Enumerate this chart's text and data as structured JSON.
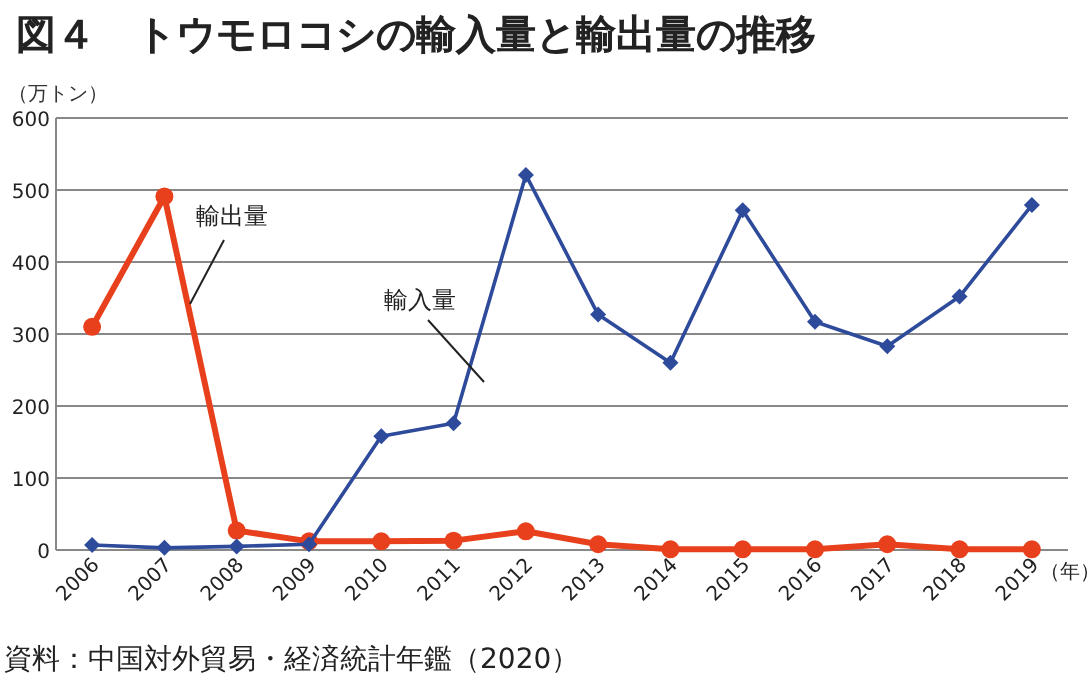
{
  "chart_data": {
    "type": "line",
    "title": "図４　トウモロコシの輸入量と輸出量の推移",
    "ylabel": "（万トン）",
    "xlabel": "（年）",
    "categories": [
      "2006",
      "2007",
      "2008",
      "2009",
      "2010",
      "2011",
      "2012",
      "2013",
      "2014",
      "2015",
      "2016",
      "2017",
      "2018",
      "2019"
    ],
    "series": [
      {
        "name": "輸入量",
        "color": "#2e4a9b",
        "marker": "diamond",
        "values": [
          7,
          3,
          5,
          8,
          158,
          176,
          521,
          327,
          260,
          472,
          317,
          283,
          352,
          479
        ]
      },
      {
        "name": "輸出量",
        "color": "#e8401c",
        "marker": "circle",
        "values": [
          310,
          491,
          27,
          12,
          12,
          13,
          26,
          8,
          1,
          1,
          1,
          8,
          1,
          1
        ]
      }
    ],
    "ylim": [
      0,
      600
    ],
    "yticks": [
      0,
      100,
      200,
      300,
      400,
      500,
      600
    ],
    "grid": "y",
    "annotations": [
      "資料：中国対外貿易・経済統計年鑑（2020）"
    ]
  }
}
